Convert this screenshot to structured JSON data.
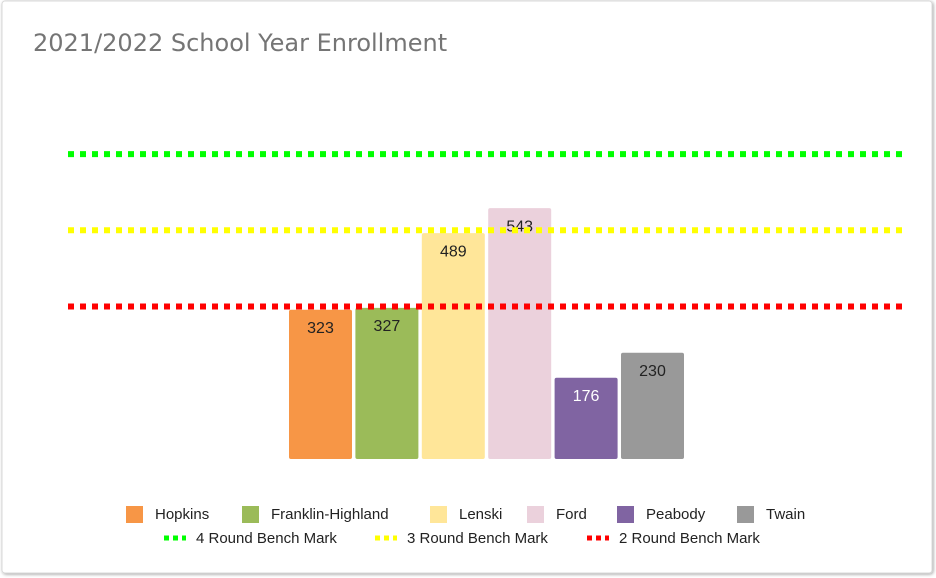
{
  "chart_data": {
    "type": "bar",
    "title": "2021/2022 School Year Enrollment",
    "series": [
      {
        "name": "Hopkins",
        "color": "#f79646",
        "values": [
          323
        ]
      },
      {
        "name": "Franklin-Highland",
        "color": "#9bbb59",
        "values": [
          327
        ]
      },
      {
        "name": "Lenski",
        "color": "#ffe699",
        "values": [
          489
        ]
      },
      {
        "name": "Ford",
        "color": "#ebd1dc",
        "values": [
          543
        ]
      },
      {
        "name": "Peabody",
        "color": "#8064a2",
        "values": [
          176
        ]
      },
      {
        "name": "Twain",
        "color": "#999999",
        "values": [
          230
        ]
      }
    ],
    "benchmarks": [
      {
        "name": "4 Round Bench Mark",
        "color": "#00ff00",
        "value": 660
      },
      {
        "name": "3 Round Bench Mark",
        "color": "#ffff00",
        "value": 495
      },
      {
        "name": "2 Round Bench Mark",
        "color": "#ff0000",
        "value": 330
      }
    ],
    "ylim": [
      0,
      700
    ],
    "grid": false
  }
}
